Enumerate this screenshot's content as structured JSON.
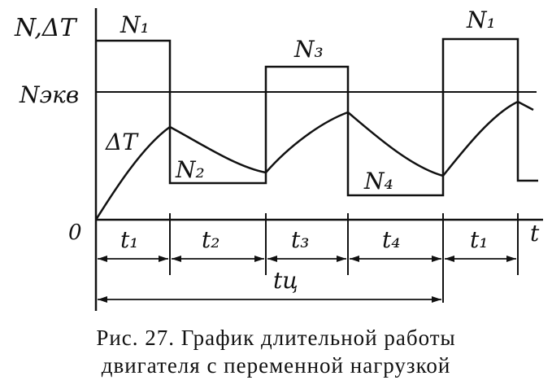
{
  "labels": {
    "y_axis": "N,ΔT",
    "n_equiv": "Nэкв",
    "origin": "0",
    "x_axis": "t",
    "delta_t": "ΔT",
    "n1_first": "N₁",
    "n2": "N₂",
    "n3": "N₃",
    "n4": "N₄",
    "n1_second": "N₁",
    "t1_first": "t₁",
    "t2": "t₂",
    "t3": "t₃",
    "t4": "t₄",
    "t1_second": "t₁",
    "cycle": "tц"
  },
  "diagram": {
    "load_levels": {
      "N1": 1.0,
      "N2": 0.2,
      "N3": 0.73,
      "N4": 0.13,
      "Nequiv": 0.6
    },
    "segments": [
      "N1",
      "N2",
      "N3",
      "N4",
      "N1"
    ]
  },
  "caption": {
    "line1": "Рис. 27. График длительной  работы",
    "line2": "двигателя с переменной нагрузкой"
  }
}
